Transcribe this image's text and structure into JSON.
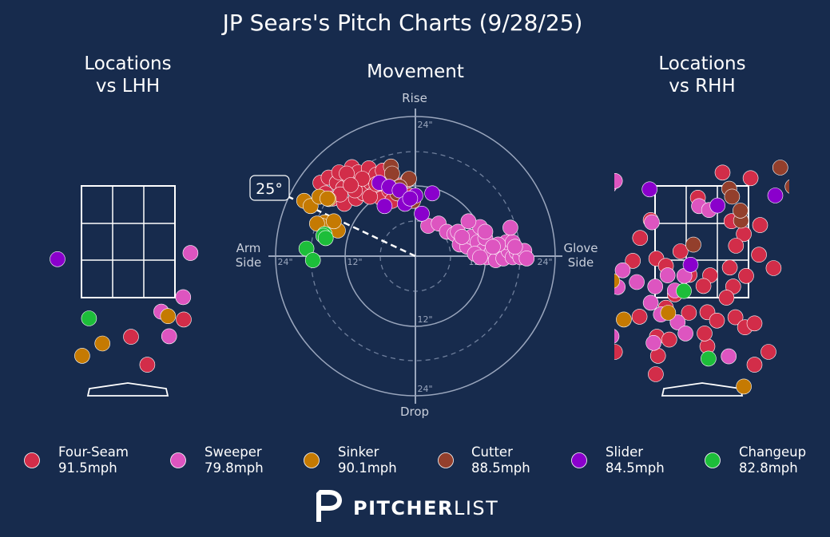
{
  "header": {
    "title": "JP Sears's Pitch Charts (9/28/25)"
  },
  "panels": {
    "left_title_line1": "Locations",
    "left_title_line2": "vs LHH",
    "center_title": "Movement",
    "right_title_line1": "Locations",
    "right_title_line2": "vs RHH"
  },
  "movement_labels": {
    "rise": "Rise",
    "drop": "Drop",
    "arm_line1": "Arm",
    "arm_line2": "Side",
    "glove_line1": "Glove",
    "glove_line2": "Side",
    "ring_12": "12\"",
    "ring_24": "24\"",
    "arm_angle": "25°"
  },
  "colors": {
    "background": "#172b4d",
    "Four-Seam": "#d22d49",
    "Sweeper": "#dd55c0",
    "Sinker": "#c57a02",
    "Cutter": "#933f2c",
    "Slider": "#8a00cc",
    "Changeup": "#1dbe3a"
  },
  "legend": [
    {
      "name": "Four-Seam",
      "speed": "91.5mph",
      "color": "#d22d49"
    },
    {
      "name": "Sweeper",
      "speed": "79.8mph",
      "color": "#dd55c0"
    },
    {
      "name": "Sinker",
      "speed": "90.1mph",
      "color": "#c57a02"
    },
    {
      "name": "Cutter",
      "speed": "88.5mph",
      "color": "#933f2c"
    },
    {
      "name": "Slider",
      "speed": "84.5mph",
      "color": "#8a00cc"
    },
    {
      "name": "Changeup",
      "speed": "82.8mph",
      "color": "#1dbe3a"
    }
  ],
  "logo": {
    "bold": "PITCHER",
    "light": "LIST"
  },
  "chart_data": [
    {
      "type": "scatter",
      "title": "Movement",
      "xlabel": "Arm Side / Glove Side (inches)",
      "ylabel": "Drop / Rise (inches)",
      "xlim": [
        -24,
        24
      ],
      "ylim": [
        -24,
        24
      ],
      "arm_angle_deg": 25,
      "series": [
        {
          "name": "Four-Seam",
          "points": [
            [
              -16.3,
              12.6
            ],
            [
              -15.4,
              10.8
            ],
            [
              -14.9,
              13.5
            ],
            [
              -14.2,
              9.9
            ],
            [
              -13.5,
              12.6
            ],
            [
              -13.1,
              14.4
            ],
            [
              -12.4,
              11.7
            ],
            [
              -12.2,
              9.0
            ],
            [
              -11.3,
              13.5
            ],
            [
              -10.9,
              15.3
            ],
            [
              -10.7,
              11.7
            ],
            [
              -10.2,
              9.9
            ],
            [
              -9.8,
              14.4
            ],
            [
              -9.5,
              12.6
            ],
            [
              -8.9,
              10.8
            ],
            [
              -8.5,
              13.5
            ],
            [
              -8.0,
              15.1
            ],
            [
              -7.6,
              12.6
            ],
            [
              -7.1,
              10.8
            ],
            [
              -6.7,
              14.0
            ],
            [
              -6.2,
              11.7
            ],
            [
              -5.8,
              9.9
            ],
            [
              -5.3,
              13.1
            ],
            [
              -4.5,
              11.3
            ],
            [
              -4.0,
              9.5
            ],
            [
              -3.1,
              12.2
            ],
            [
              -2.2,
              10.4
            ],
            [
              -1.3,
              13.1
            ],
            [
              -0.9,
              10.4
            ],
            [
              -11.8,
              14.2
            ],
            [
              -10.4,
              11.3
            ],
            [
              -9.1,
              13.3
            ],
            [
              -7.8,
              10.2
            ],
            [
              -6.7,
              12.4
            ],
            [
              -5.6,
              14.7
            ],
            [
              -4.2,
              12.8
            ],
            [
              -12.9,
              10.6
            ],
            [
              -11.1,
              12.2
            ]
          ]
        },
        {
          "name": "Sweeper",
          "points": [
            [
              2.2,
              5.2
            ],
            [
              4.0,
              5.6
            ],
            [
              5.4,
              4.2
            ],
            [
              6.7,
              3.8
            ],
            [
              7.6,
              2.0
            ],
            [
              8.9,
              1.6
            ],
            [
              9.6,
              3.3
            ],
            [
              10.7,
              2.4
            ],
            [
              11.6,
              0.9
            ],
            [
              12.2,
              -0.2
            ],
            [
              13.1,
              0.7
            ],
            [
              13.8,
              -0.7
            ],
            [
              14.5,
              1.3
            ],
            [
              15.1,
              -0.4
            ],
            [
              16.0,
              0.9
            ],
            [
              16.7,
              -0.2
            ],
            [
              17.4,
              0.7
            ],
            [
              18.0,
              -0.2
            ],
            [
              18.7,
              0.9
            ],
            [
              19.1,
              -0.4
            ],
            [
              15.6,
              2.4
            ],
            [
              11.1,
              5.0
            ],
            [
              7.3,
              4.2
            ],
            [
              9.1,
              6.0
            ],
            [
              12.0,
              3.1
            ],
            [
              14.2,
              2.0
            ],
            [
              10.2,
              0.4
            ],
            [
              16.7,
              2.4
            ],
            [
              13.3,
              1.6
            ],
            [
              11.1,
              -0.2
            ],
            [
              16.3,
              4.9
            ],
            [
              8.0,
              3.3
            ],
            [
              12.0,
              4.2
            ],
            [
              17.1,
              1.6
            ]
          ]
        },
        {
          "name": "Sinker",
          "points": [
            [
              -19.1,
              9.5
            ],
            [
              -18.0,
              8.6
            ],
            [
              -16.5,
              10.2
            ],
            [
              -15.6,
              5.8
            ],
            [
              -14.9,
              9.8
            ],
            [
              -16.0,
              5.2
            ],
            [
              -13.3,
              4.4
            ],
            [
              -14.0,
              6.0
            ],
            [
              -16.9,
              5.6
            ],
            [
              -15.1,
              9.9
            ]
          ]
        },
        {
          "name": "Cutter",
          "points": [
            [
              -4.2,
              15.4
            ],
            [
              -4.0,
              14.2
            ],
            [
              -1.1,
              13.3
            ],
            [
              -3.1,
              10.8
            ],
            [
              -0.4,
              9.5
            ],
            [
              -2.7,
              11.9
            ]
          ]
        },
        {
          "name": "Slider",
          "points": [
            [
              -6.2,
              12.6
            ],
            [
              -4.5,
              11.9
            ],
            [
              -2.7,
              11.3
            ],
            [
              -1.8,
              9.0
            ],
            [
              0.0,
              10.4
            ],
            [
              -0.9,
              9.9
            ],
            [
              1.1,
              7.3
            ],
            [
              2.9,
              10.8
            ],
            [
              -5.3,
              8.6
            ]
          ]
        },
        {
          "name": "Changeup",
          "points": [
            [
              -18.7,
              1.3
            ],
            [
              -17.6,
              -0.7
            ],
            [
              -15.6,
              3.8
            ],
            [
              -15.8,
              3.5
            ],
            [
              -15.4,
              3.1
            ]
          ]
        }
      ]
    },
    {
      "type": "scatter",
      "title": "Locations vs LHH",
      "xlabel": "",
      "ylabel": "",
      "series": [
        {
          "name": "Four-Seam",
          "points": [
            [
              0.34,
              0.47
            ],
            [
              0.05,
              0.97
            ],
            [
              0.99,
              1.28
            ]
          ]
        },
        {
          "name": "Sweeper",
          "points": [
            [
              -2.79,
              3.6
            ],
            [
              1.11,
              2.47
            ],
            [
              2.51,
              2.3
            ],
            [
              0.98,
              1.68
            ],
            [
              0.59,
              1.42
            ],
            [
              2.26,
              1.4
            ],
            [
              2.43,
              1.4
            ],
            [
              0.73,
              0.98
            ]
          ]
        },
        {
          "name": "Sinker",
          "points": [
            [
              -2.79,
              1.61
            ],
            [
              -2.17,
              0.44
            ],
            [
              -0.82,
              0.63
            ],
            [
              -0.46,
              0.85
            ],
            [
              0.71,
              1.34
            ]
          ]
        },
        {
          "name": "Slider",
          "points": [
            [
              -1.26,
              2.36
            ]
          ]
        },
        {
          "name": "Changeup",
          "points": [
            [
              -0.7,
              1.3
            ]
          ]
        }
      ]
    },
    {
      "type": "scatter",
      "title": "Locations vs RHH",
      "xlabel": "",
      "ylabel": "",
      "series": [
        {
          "name": "Four-Seam",
          "points": [
            [
              0.37,
              3.91
            ],
            [
              0.87,
              3.81
            ],
            [
              -1.72,
              3.59
            ],
            [
              -0.07,
              3.46
            ],
            [
              -0.91,
              3.06
            ],
            [
              0.53,
              3.04
            ],
            [
              1.04,
              2.97
            ],
            [
              0.75,
              2.81
            ],
            [
              -1.1,
              2.74
            ],
            [
              0.61,
              2.6
            ],
            [
              1.02,
              2.44
            ],
            [
              0.79,
              2.06
            ],
            [
              0.5,
              2.21
            ],
            [
              1.28,
              2.2
            ],
            [
              -0.38,
              2.5
            ],
            [
              -0.81,
              2.37
            ],
            [
              -1.23,
              2.33
            ],
            [
              -0.64,
              2.24
            ],
            [
              -0.22,
              2.08
            ],
            [
              0.15,
              2.07
            ],
            [
              0.03,
              1.88
            ],
            [
              0.56,
              1.87
            ],
            [
              -0.48,
              1.73
            ],
            [
              0.44,
              1.67
            ],
            [
              -0.64,
              1.49
            ],
            [
              -0.23,
              1.4
            ],
            [
              0.1,
              1.41
            ],
            [
              0.6,
              1.32
            ],
            [
              0.27,
              1.26
            ],
            [
              -1.11,
              1.33
            ],
            [
              0.77,
              1.14
            ],
            [
              0.94,
              1.21
            ],
            [
              -0.8,
              0.97
            ],
            [
              -0.58,
              0.92
            ],
            [
              0.1,
              0.8
            ],
            [
              1.19,
              0.7
            ],
            [
              2.4,
              2.52
            ],
            [
              2.46,
              1.9
            ],
            [
              2.12,
              0.95
            ],
            [
              2.29,
              0.94
            ],
            [
              -1.55,
              0.7
            ],
            [
              0.94,
              0.47
            ],
            [
              -0.78,
              0.63
            ],
            [
              -0.82,
              0.3
            ],
            [
              0.05,
              1.03
            ]
          ]
        },
        {
          "name": "Sweeper",
          "points": [
            [
              -1.65,
              3.68
            ],
            [
              -1.55,
              3.76
            ],
            [
              -0.05,
              3.31
            ],
            [
              0.13,
              3.24
            ],
            [
              -0.89,
              3.02
            ],
            [
              -1.41,
              2.16
            ],
            [
              -0.61,
              2.07
            ],
            [
              -1.16,
              1.95
            ],
            [
              -0.83,
              1.87
            ],
            [
              -0.48,
              1.8
            ],
            [
              -0.31,
              2.06
            ],
            [
              -2.25,
              1.85
            ],
            [
              -1.5,
              1.86
            ],
            [
              -0.91,
              1.58
            ],
            [
              -0.73,
              1.37
            ],
            [
              -0.43,
              1.23
            ],
            [
              -0.29,
              1.03
            ],
            [
              -1.61,
              0.98
            ],
            [
              -2.33,
              0.82
            ],
            [
              -0.86,
              0.86
            ],
            [
              0.48,
              0.62
            ],
            [
              1.81,
              0.16
            ],
            [
              2.79,
              3.59
            ]
          ]
        },
        {
          "name": "Sinker",
          "points": [
            [
              -1.6,
              1.97
            ],
            [
              -1.39,
              1.28
            ],
            [
              -0.6,
              1.4
            ],
            [
              0.75,
              0.08
            ]
          ]
        },
        {
          "name": "Cutter",
          "points": [
            [
              1.4,
              4.0
            ],
            [
              1.62,
              3.66
            ],
            [
              0.49,
              3.62
            ],
            [
              0.54,
              3.48
            ],
            [
              0.7,
              3.05
            ],
            [
              -0.15,
              2.62
            ],
            [
              0.69,
              3.23
            ],
            [
              2.42,
              1.87
            ]
          ]
        },
        {
          "name": "Slider",
          "points": [
            [
              -0.93,
              3.61
            ],
            [
              1.31,
              3.5
            ],
            [
              -0.2,
              2.26
            ],
            [
              0.28,
              3.32
            ],
            [
              -2.79,
              0.73
            ]
          ]
        },
        {
          "name": "Changeup",
          "points": [
            [
              0.12,
              0.58
            ],
            [
              -0.32,
              1.79
            ]
          ]
        }
      ]
    }
  ]
}
